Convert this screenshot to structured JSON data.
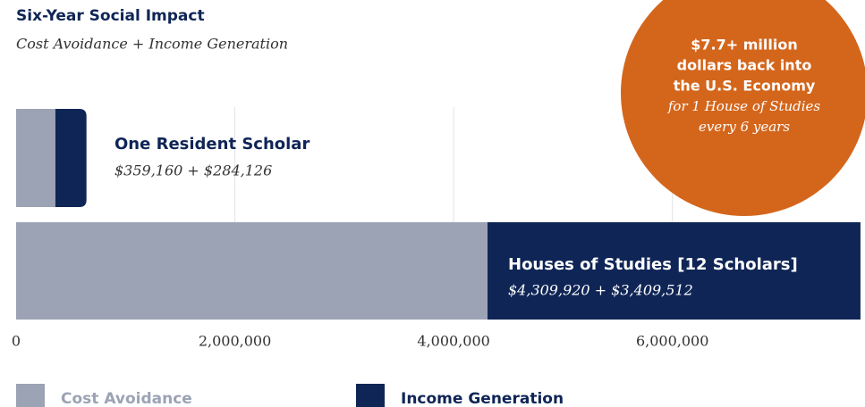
{
  "chart_data": {
    "type": "stacked_barh",
    "title": "Six-Year Social Impact",
    "subtitle": "Cost Avoidance + Income Generation",
    "categories": [
      "One Resident Scholar",
      "Houses of Studies [12 Scholars]"
    ],
    "value_labels": [
      "$359,160 + $284,126",
      "$4,309,920 + $3,409,512"
    ],
    "series": [
      {
        "name": "Cost Avoidance",
        "color": "#9ba3b4",
        "values": [
          359160,
          4309920
        ]
      },
      {
        "name": "Income Generation",
        "color": "#0f2556",
        "values": [
          284126,
          3409512
        ]
      }
    ],
    "xlim": [
      0,
      7720000
    ],
    "xticks": [
      0,
      {
        "value": 2000000,
        "label": "2,000,000"
      },
      {
        "value": 4000000,
        "label": "4,000,000"
      },
      {
        "value": 6000000,
        "label": "6,000,000"
      }
    ],
    "grid": true,
    "callout": {
      "color": "#d4661c",
      "bold_lines": [
        "$7.7+ million",
        "dollars back into",
        "the U.S. Economy"
      ],
      "italic_lines": [
        "for 1 House of Studies",
        "every 6 years"
      ]
    }
  }
}
